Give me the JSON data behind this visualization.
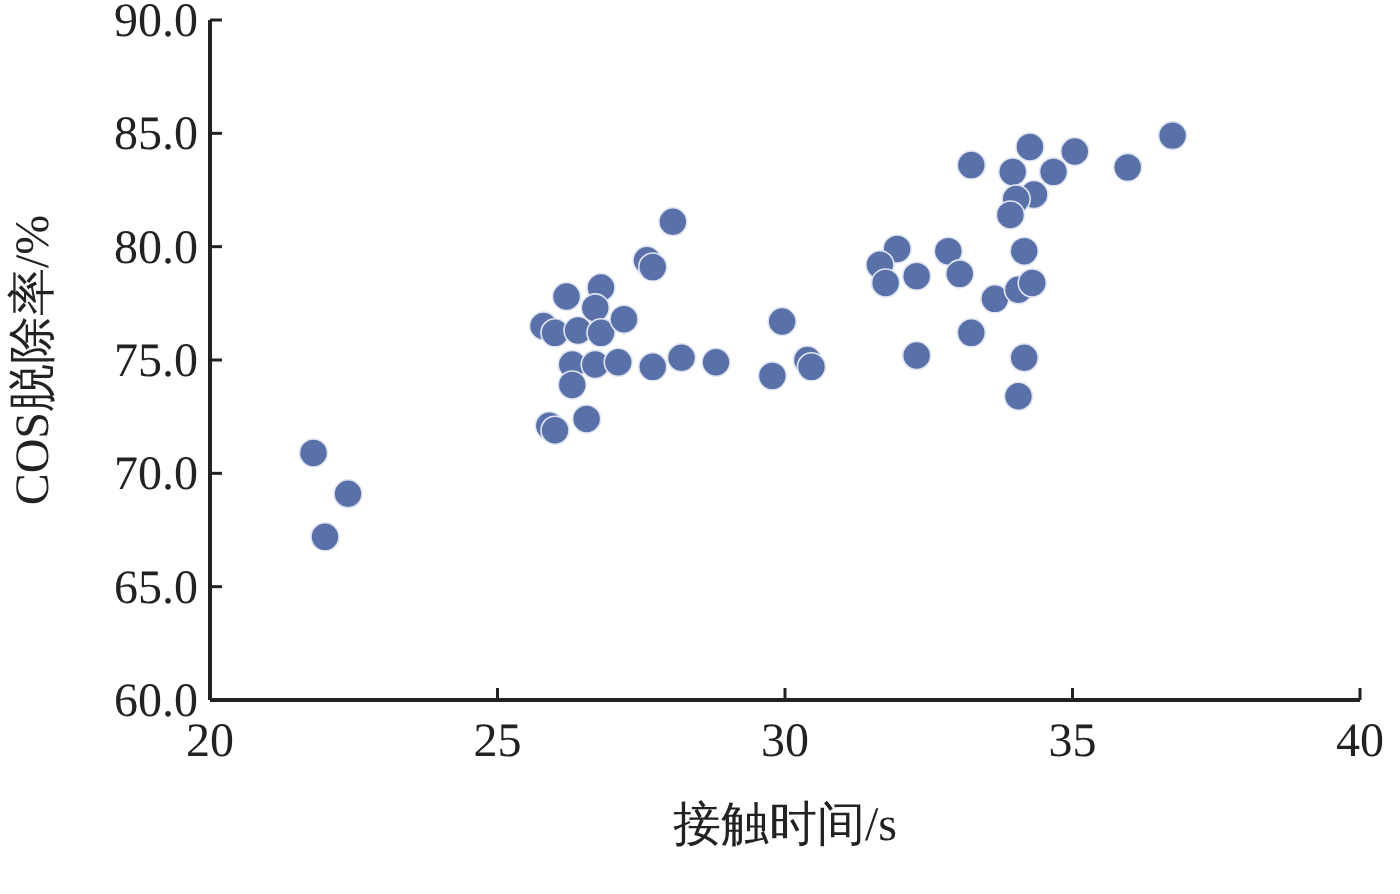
{
  "chart_data": {
    "type": "scatter",
    "xlabel": "接触时间/s",
    "ylabel": "COS脱除率/%",
    "xlim": [
      20,
      40
    ],
    "xticks": [
      20,
      25,
      30,
      35,
      40
    ],
    "ylim": [
      60,
      90
    ],
    "yticks": [
      {
        "value": 60,
        "label": "60.0"
      },
      {
        "value": 65,
        "label": "65.0"
      },
      {
        "value": 70,
        "label": "70.0"
      },
      {
        "value": 75,
        "label": "75.0"
      },
      {
        "value": 80,
        "label": "80.0"
      },
      {
        "value": 85,
        "label": "85.0"
      },
      {
        "value": 90,
        "label": "90.0"
      }
    ],
    "grid": false,
    "marker": "circle",
    "series": [
      {
        "color": "#5a70a8",
        "x": [
          21.8,
          22.4,
          22.0,
          28.05,
          27.6,
          27.7,
          26.2,
          26.8,
          26.7,
          25.8,
          26.0,
          26.4,
          26.8,
          27.2,
          26.3,
          26.7,
          27.1,
          27.7,
          28.2,
          28.8,
          26.3,
          25.9,
          26.0,
          26.55,
          29.95,
          29.78,
          30.39,
          30.46,
          33.24,
          34.26,
          33.96,
          34.67,
          35.04,
          35.96,
          36.74,
          34.33,
          34.02,
          33.92,
          34.16,
          31.95,
          31.65,
          31.75,
          32.29,
          32.84,
          33.04,
          33.65,
          34.06,
          34.3,
          33.24,
          34.16,
          34.06,
          32.29
        ],
        "values": [
          70.9,
          69.1,
          67.2,
          81.1,
          79.4,
          79.1,
          77.8,
          78.2,
          77.3,
          76.5,
          76.2,
          76.3,
          76.2,
          76.8,
          74.8,
          74.8,
          74.9,
          74.7,
          75.1,
          74.9,
          73.9,
          72.1,
          71.9,
          72.4,
          76.7,
          74.3,
          75.0,
          74.7,
          83.6,
          84.4,
          83.3,
          83.3,
          84.2,
          83.5,
          84.9,
          82.3,
          82.1,
          81.4,
          79.8,
          79.9,
          79.2,
          78.4,
          78.7,
          79.8,
          78.8,
          77.7,
          78.1,
          78.4,
          76.2,
          75.1,
          73.4,
          75.2
        ]
      }
    ]
  }
}
